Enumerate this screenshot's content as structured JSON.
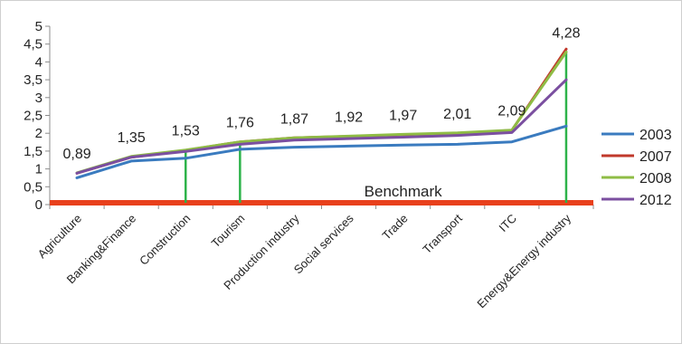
{
  "chart_data": {
    "type": "line",
    "title": "",
    "xlabel": "",
    "ylabel": "",
    "ylim": [
      0,
      5
    ],
    "yticks": [
      "0",
      "0,5",
      "1",
      "1,5",
      "2",
      "2,5",
      "3",
      "3,5",
      "4",
      "4,5",
      "5"
    ],
    "grid": false,
    "legend": "right",
    "categories": [
      "Agriculture",
      "Banking&Finance",
      "Construction",
      "Tourism",
      "Production industry",
      "Social services",
      "Trade",
      "Transport",
      "ITC",
      "Energy&Energy industry"
    ],
    "series": [
      {
        "name": "2003",
        "color": "#3a7bbf",
        "values": [
          0.75,
          1.22,
          1.3,
          1.55,
          1.61,
          1.64,
          1.67,
          1.69,
          1.76,
          2.2
        ]
      },
      {
        "name": "2007",
        "color": "#c0392b",
        "values": [
          0.88,
          1.33,
          1.52,
          1.76,
          1.87,
          1.91,
          1.96,
          2.0,
          2.08,
          4.36
        ]
      },
      {
        "name": "2008",
        "color": "#8fbc45",
        "values": [
          0.89,
          1.35,
          1.53,
          1.76,
          1.87,
          1.92,
          1.97,
          2.01,
          2.09,
          4.28
        ]
      },
      {
        "name": "2012",
        "color": "#7b4fa0",
        "values": [
          0.88,
          1.33,
          1.49,
          1.69,
          1.81,
          1.85,
          1.89,
          1.94,
          2.02,
          3.5
        ]
      }
    ],
    "data_labels": [
      "0,89",
      "1,35",
      "1,53",
      "1,76",
      "1,87",
      "1,92",
      "1,97",
      "2,01",
      "2,09",
      "4,28"
    ],
    "benchmark": {
      "label": "Benchmark",
      "value": 0.05,
      "color": "#e8401c"
    },
    "markers": {
      "color": "#2db34a",
      "values": [
        1.55,
        1.7,
        4.3
      ]
    },
    "axis_color": "#8c8c8c"
  }
}
